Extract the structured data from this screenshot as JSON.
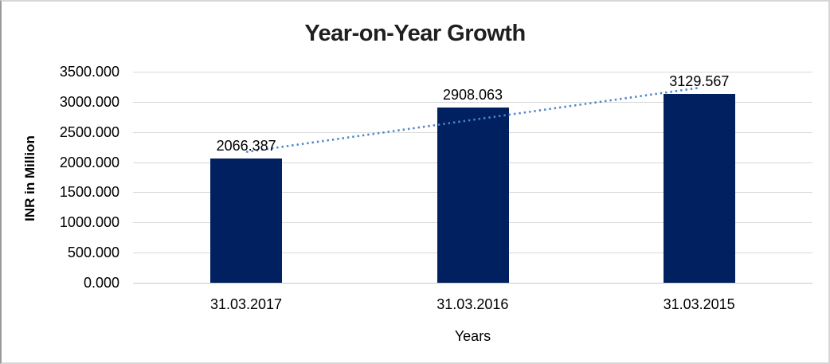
{
  "chart_data": {
    "type": "bar",
    "title": "Year-on-Year Growth",
    "categories": [
      "31.03.2017",
      "31.03.2016",
      "31.03.2015"
    ],
    "values": [
      2066.387,
      2908.063,
      3129.567
    ],
    "data_labels": [
      "2066.387",
      "2908.063",
      "3129.567"
    ],
    "xlabel": "Years",
    "ylabel": "INR in Million",
    "ylim": [
      0,
      3500
    ],
    "ytick_labels": [
      "0.000",
      "500.000",
      "1000.000",
      "1500.000",
      "2000.000",
      "2500.000",
      "3000.000",
      "3500.000"
    ],
    "grid": true,
    "legend": "none",
    "colors": {
      "bar": "#002060",
      "trendline": "#4e86c8",
      "gridline": "#d9d9d9",
      "text": "#000000"
    },
    "trendline": {
      "type": "linear",
      "style": "dotted",
      "start_value": 2170,
      "end_value": 3233
    }
  }
}
